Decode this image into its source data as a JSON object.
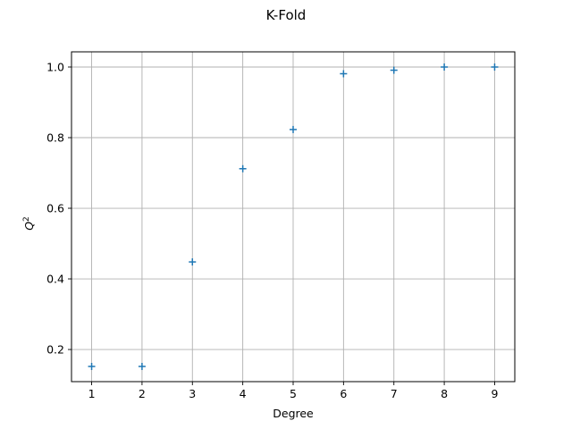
{
  "chart_data": {
    "type": "scatter",
    "title": "K-Fold",
    "xlabel": "Degree",
    "ylabel": "Q",
    "ylabel_superscript": "2",
    "x": [
      1,
      2,
      3,
      4,
      5,
      6,
      7,
      8,
      9
    ],
    "y": [
      0.152,
      0.152,
      0.448,
      0.712,
      0.823,
      0.981,
      0.991,
      1.0,
      1.0
    ],
    "xlim": [
      0.6,
      9.4
    ],
    "ylim": [
      0.109,
      1.043
    ],
    "xticks": [
      1,
      2,
      3,
      4,
      5,
      6,
      7,
      8,
      9
    ],
    "xtick_labels": [
      "1",
      "2",
      "3",
      "4",
      "5",
      "6",
      "7",
      "8",
      "9"
    ],
    "yticks": [
      0.2,
      0.4,
      0.6,
      0.8,
      1.0
    ],
    "ytick_labels": [
      "0.2",
      "0.4",
      "0.6",
      "0.8",
      "1.0"
    ],
    "grid": true,
    "marker": "plus",
    "colors": {
      "marker": "#1f77b4",
      "grid": "#b0b0b0",
      "axes": "#000000"
    }
  }
}
